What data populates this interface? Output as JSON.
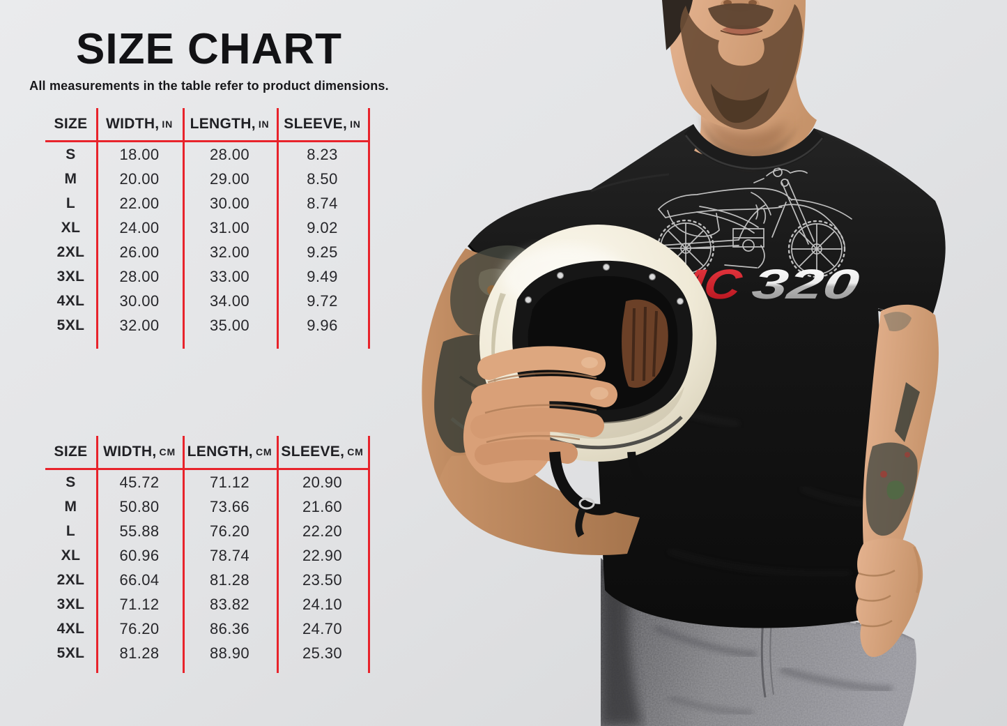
{
  "page": {
    "title": "SIZE CHART",
    "subtitle": "All measurements in the table refer to product dimensions."
  },
  "shirt_graphic": {
    "brand_prefix": "MC",
    "brand_suffix": "320",
    "art": "dirt-bike-line-art"
  },
  "colors": {
    "accent_red": "#e8232b",
    "text": "#1f1f23",
    "background": "#e3e4e6",
    "brand_red": "#c4161f",
    "brand_silver": "#d9d9d9",
    "tshirt_black": "#141414",
    "helmet_cream": "#efe9d8"
  },
  "tables": {
    "inches": {
      "headers": [
        {
          "label": "SIZE",
          "unit": ""
        },
        {
          "label": "WIDTH,",
          "unit": "IN"
        },
        {
          "label": "LENGTH,",
          "unit": "IN"
        },
        {
          "label": "SLEEVE,",
          "unit": "IN"
        }
      ],
      "rows": [
        [
          "S",
          "18.00",
          "28.00",
          "8.23"
        ],
        [
          "M",
          "20.00",
          "29.00",
          "8.50"
        ],
        [
          "L",
          "22.00",
          "30.00",
          "8.74"
        ],
        [
          "XL",
          "24.00",
          "31.00",
          "9.02"
        ],
        [
          "2XL",
          "26.00",
          "32.00",
          "9.25"
        ],
        [
          "3XL",
          "28.00",
          "33.00",
          "9.49"
        ],
        [
          "4XL",
          "30.00",
          "34.00",
          "9.72"
        ],
        [
          "5XL",
          "32.00",
          "35.00",
          "9.96"
        ]
      ]
    },
    "cm": {
      "headers": [
        {
          "label": "SIZE",
          "unit": ""
        },
        {
          "label": "WIDTH,",
          "unit": "CM"
        },
        {
          "label": "LENGTH,",
          "unit": "CM"
        },
        {
          "label": "SLEEVE,",
          "unit": "CM"
        }
      ],
      "rows": [
        [
          "S",
          "45.72",
          "71.12",
          "20.90"
        ],
        [
          "M",
          "50.80",
          "73.66",
          "21.60"
        ],
        [
          "L",
          "55.88",
          "76.20",
          "22.20"
        ],
        [
          "XL",
          "60.96",
          "78.74",
          "22.90"
        ],
        [
          "2XL",
          "66.04",
          "81.28",
          "23.50"
        ],
        [
          "3XL",
          "71.12",
          "83.82",
          "24.10"
        ],
        [
          "4XL",
          "76.20",
          "86.36",
          "24.70"
        ],
        [
          "5XL",
          "81.28",
          "88.90",
          "25.30"
        ]
      ]
    }
  },
  "chart_data": [
    {
      "type": "table",
      "title": "Size chart — product dimensions (inches)",
      "columns": [
        "SIZE",
        "WIDTH, IN",
        "LENGTH, IN",
        "SLEEVE, IN"
      ],
      "rows": [
        [
          "S",
          18.0,
          28.0,
          8.23
        ],
        [
          "M",
          20.0,
          29.0,
          8.5
        ],
        [
          "L",
          22.0,
          30.0,
          8.74
        ],
        [
          "XL",
          24.0,
          31.0,
          9.02
        ],
        [
          "2XL",
          26.0,
          32.0,
          9.25
        ],
        [
          "3XL",
          28.0,
          33.0,
          9.49
        ],
        [
          "4XL",
          30.0,
          34.0,
          9.72
        ],
        [
          "5XL",
          32.0,
          35.0,
          9.96
        ]
      ]
    },
    {
      "type": "table",
      "title": "Size chart — product dimensions (centimeters)",
      "columns": [
        "SIZE",
        "WIDTH, CM",
        "LENGTH, CM",
        "SLEEVE, CM"
      ],
      "rows": [
        [
          "S",
          45.72,
          71.12,
          20.9
        ],
        [
          "M",
          50.8,
          73.66,
          21.6
        ],
        [
          "L",
          55.88,
          76.2,
          22.2
        ],
        [
          "XL",
          60.96,
          78.74,
          22.9
        ],
        [
          "2XL",
          66.04,
          81.28,
          23.5
        ],
        [
          "3XL",
          71.12,
          83.82,
          24.1
        ],
        [
          "4XL",
          76.2,
          86.36,
          24.7
        ],
        [
          "5XL",
          81.28,
          88.9,
          25.3
        ]
      ]
    }
  ]
}
